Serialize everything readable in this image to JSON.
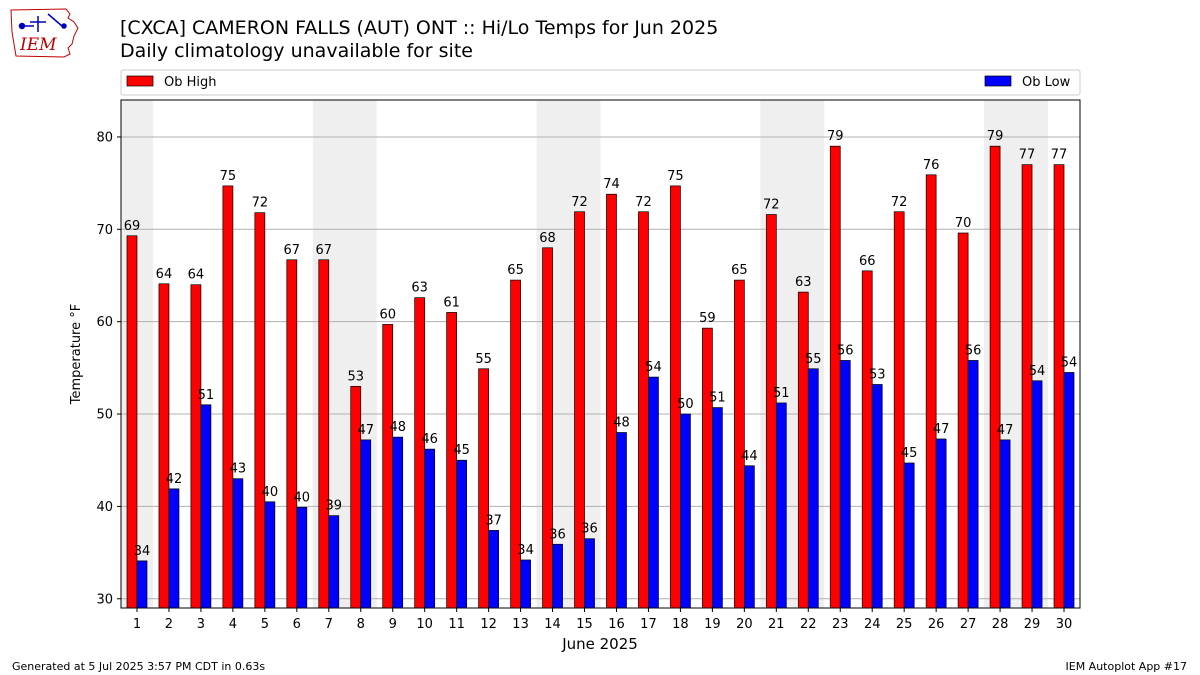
{
  "logo": {
    "text": "IEM"
  },
  "header": {
    "title": "[CXCA] CAMERON FALLS (AUT)  ONT :: Hi/Lo Temps for Jun 2025",
    "subtitle": "Daily climatology unavailable for site"
  },
  "footer": {
    "generated": "Generated at 5 Jul 2025 3:57 PM CDT in 0.63s",
    "app": "IEM Autoplot App #17"
  },
  "colors": {
    "high": "#ff0000",
    "low": "#0000ff",
    "weekend": "#efefef",
    "grid": "#b0b0b0"
  },
  "chart_data": {
    "type": "bar",
    "xlabel": "June 2025",
    "ylabel": "Temperature °F",
    "ylim": [
      29,
      84
    ],
    "yticks": [
      30,
      40,
      50,
      60,
      70,
      80
    ],
    "grid": "horizontal",
    "legend": "top, spanning width",
    "categories": [
      "1",
      "2",
      "3",
      "4",
      "5",
      "6",
      "7",
      "8",
      "9",
      "10",
      "11",
      "12",
      "13",
      "14",
      "15",
      "16",
      "17",
      "18",
      "19",
      "20",
      "21",
      "22",
      "23",
      "24",
      "25",
      "26",
      "27",
      "28",
      "29",
      "30"
    ],
    "weekend_bands": [
      [
        "1",
        "1"
      ],
      [
        "7",
        "8"
      ],
      [
        "14",
        "15"
      ],
      [
        "21",
        "22"
      ],
      [
        "28",
        "29"
      ]
    ],
    "series": [
      {
        "name": "Ob High",
        "color": "#ff0000",
        "values": [
          69.3,
          64.1,
          64.0,
          74.7,
          71.8,
          66.7,
          66.7,
          53.0,
          59.7,
          62.6,
          61.0,
          54.9,
          64.5,
          68.0,
          71.9,
          73.8,
          71.9,
          74.7,
          59.3,
          64.5,
          71.6,
          63.2,
          79.0,
          65.5,
          71.9,
          75.9,
          69.6,
          79.0,
          77.0,
          77.0
        ],
        "labels": [
          "69",
          "64",
          "64",
          "75",
          "72",
          "67",
          "67",
          "53",
          "60",
          "63",
          "61",
          "55",
          "65",
          "68",
          "72",
          "74",
          "72",
          "75",
          "59",
          "65",
          "72",
          "63",
          "79",
          "66",
          "72",
          "76",
          "70",
          "79",
          "77",
          "77"
        ]
      },
      {
        "name": "Ob Low",
        "color": "#0000ff",
        "values": [
          34.1,
          41.9,
          51.0,
          43.0,
          40.5,
          39.9,
          39.0,
          47.2,
          47.5,
          46.2,
          45.0,
          37.4,
          34.2,
          35.9,
          36.5,
          48.0,
          54.0,
          50.0,
          50.7,
          44.4,
          51.2,
          54.9,
          55.8,
          53.2,
          44.7,
          47.3,
          55.8,
          47.2,
          53.6,
          54.5
        ],
        "labels": [
          "34",
          "42",
          "51",
          "43",
          "40",
          "40",
          "39",
          "47",
          "48",
          "46",
          "45",
          "37",
          "34",
          "36",
          "36",
          "48",
          "54",
          "50",
          "51",
          "44",
          "51",
          "55",
          "56",
          "53",
          "45",
          "47",
          "56",
          "47",
          "54",
          "54"
        ]
      }
    ]
  }
}
